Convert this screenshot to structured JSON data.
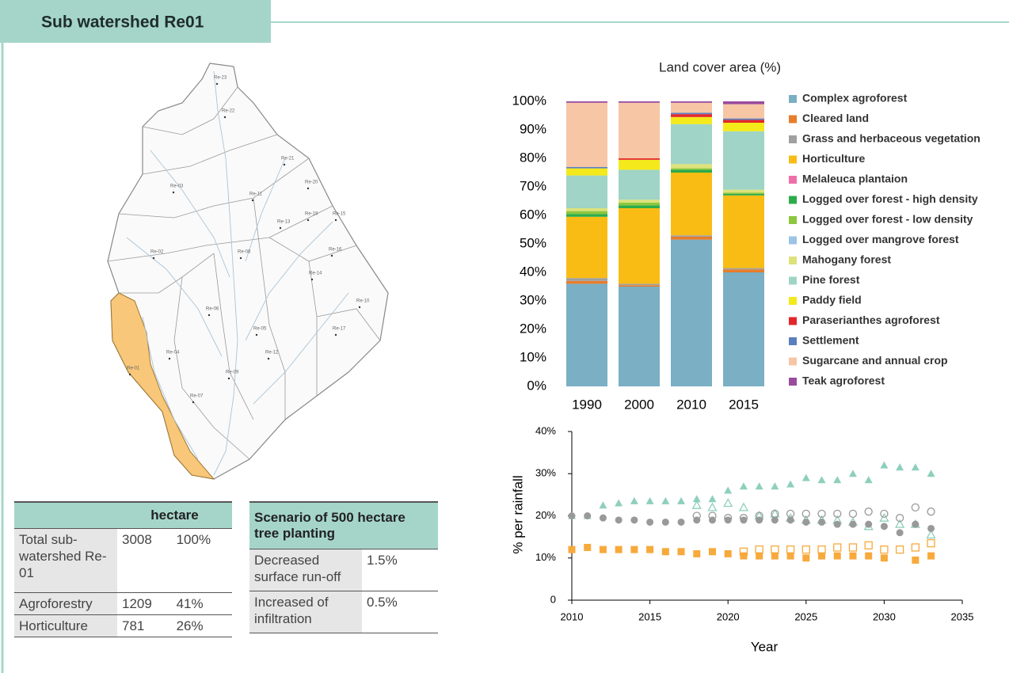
{
  "header": {
    "title": "Sub watershed Re01"
  },
  "map": {
    "labels": [
      "Re-23",
      "Re-22",
      "Re-21",
      "Re-03",
      "Re-11",
      "Re-20",
      "Re-19",
      "Re-13",
      "Re-15",
      "Re-02",
      "Re-08",
      "Re-16",
      "Re-14",
      "Re-06",
      "Re-05",
      "Re-04",
      "Re-10",
      "Re-17",
      "Re-12",
      "Re-09",
      "Re-01",
      "Re-07"
    ]
  },
  "tables": [
    {
      "header": "hectare",
      "rows": [
        [
          "Total sub-watershed Re-01",
          "3008",
          "100%"
        ],
        [
          "Agroforestry",
          "1209",
          "41%"
        ],
        [
          "Horticulture",
          "781",
          "26%"
        ]
      ]
    },
    {
      "header": "Scenario of 500 hectare tree planting",
      "rows": [
        [
          "Decreased surface run-off",
          "1.5%"
        ],
        [
          "Increased of infiltration",
          "0.5%"
        ]
      ]
    }
  ],
  "chart_data": [
    {
      "type": "stacked_bar",
      "title": "Land cover area (%)",
      "categories": [
        "1990",
        "2000",
        "2010",
        "2015"
      ],
      "ylim": [
        0,
        100
      ],
      "yticks": [
        {
          "value": 0,
          "label": "0%"
        },
        {
          "value": 10,
          "label": "10%"
        },
        {
          "value": 20,
          "label": "20%"
        },
        {
          "value": 30,
          "label": "30%"
        },
        {
          "value": 40,
          "label": "40%"
        },
        {
          "value": 50,
          "label": "50%"
        },
        {
          "value": 60,
          "label": "60%"
        },
        {
          "value": 70,
          "label": "70%"
        },
        {
          "value": 80,
          "label": "80%"
        },
        {
          "value": 90,
          "label": "90%"
        },
        {
          "value": 100,
          "label": "100%"
        }
      ],
      "grid": false,
      "legend": "right",
      "series": [
        {
          "name": "Complex agroforest",
          "color": "#7aafc4",
          "values": [
            36,
            35,
            51.5,
            40
          ]
        },
        {
          "name": "Cleared land",
          "color": "#e87d2a",
          "values": [
            1,
            0.5,
            1,
            1
          ]
        },
        {
          "name": "Grass and herbaceous vegetation",
          "color": "#a0a0a0",
          "values": [
            1,
            0.5,
            0.5,
            0.5
          ]
        },
        {
          "name": "Horticulture",
          "color": "#f9bc15",
          "values": [
            21.5,
            26.5,
            22,
            25.5
          ]
        },
        {
          "name": "Melaleuca plantaion",
          "color": "#f06fa8",
          "values": [
            0,
            0,
            0,
            0
          ]
        },
        {
          "name": "Logged over forest -  high density",
          "color": "#2bac4b",
          "values": [
            1,
            1,
            1,
            0.5
          ]
        },
        {
          "name": "Logged over forest -  low density",
          "color": "#8dc63f",
          "values": [
            1,
            1,
            0.5,
            0.5
          ]
        },
        {
          "name": "Logged over mangrove forest",
          "color": "#9dc3e6",
          "values": [
            0,
            0,
            0,
            0
          ]
        },
        {
          "name": "Mahogany forest",
          "color": "#dde27a",
          "values": [
            1,
            1,
            1.5,
            1
          ]
        },
        {
          "name": "Pine forest",
          "color": "#9fd4c6",
          "values": [
            11.5,
            10.5,
            14,
            20.5
          ]
        },
        {
          "name": "Paddy field",
          "color": "#f4e91b",
          "values": [
            2.5,
            3.5,
            2.5,
            3
          ]
        },
        {
          "name": "Paraserianthes agroforest",
          "color": "#e3262b",
          "values": [
            0,
            0.5,
            1,
            1
          ]
        },
        {
          "name": "Settlement",
          "color": "#5b7fbe",
          "values": [
            0.5,
            0,
            0.5,
            0.5
          ]
        },
        {
          "name": "Sugarcane and annual crop",
          "color": "#f7c6a5",
          "values": [
            22.5,
            19.5,
            3.5,
            5
          ]
        },
        {
          "name": "Teak agroforest",
          "color": "#9a4b9e",
          "values": [
            0.5,
            0.5,
            0.5,
            1
          ]
        }
      ]
    },
    {
      "type": "scatter",
      "x_label": "Year",
      "y_label": "% per rainfall",
      "xlim": [
        2010,
        2035
      ],
      "xticks": [
        2010,
        2015,
        2020,
        2025,
        2030,
        2035
      ],
      "ylim": [
        0,
        40
      ],
      "yticks": [
        0,
        {
          "value": 10,
          "label": "10%"
        },
        {
          "value": 20,
          "label": "20%"
        },
        {
          "value": 30,
          "label": "30%"
        },
        {
          "value": 40,
          "label": "40%"
        }
      ],
      "series": [
        {
          "color": "#8ecfbd",
          "marker": "triangle",
          "filled": true,
          "x": [
            2010,
            2011,
            2012,
            2013,
            2014,
            2015,
            2016,
            2017,
            2018,
            2019,
            2020,
            2021,
            2022,
            2023,
            2024,
            2025,
            2026,
            2027,
            2028,
            2029,
            2030,
            2031,
            2032,
            2033
          ],
          "values": [
            20,
            20,
            22.5,
            23,
            23.5,
            23.5,
            23.5,
            23.5,
            24,
            24,
            26,
            27,
            27,
            27,
            27.5,
            29,
            28.5,
            28.5,
            30,
            28.5,
            32,
            31.5,
            31.5,
            30
          ]
        },
        {
          "color": "#8ecfbd",
          "marker": "triangle",
          "filled": false,
          "x": [
            2018,
            2019,
            2020,
            2021,
            2022,
            2023,
            2024,
            2025,
            2026,
            2027,
            2028,
            2029,
            2030,
            2031,
            2032,
            2033
          ],
          "values": [
            22.5,
            22,
            23,
            22,
            20,
            20.5,
            19.5,
            19,
            19,
            19,
            18.5,
            17.5,
            19.5,
            18,
            18,
            15.5
          ]
        },
        {
          "color": "#999999",
          "marker": "circle",
          "filled": true,
          "x": [
            2010,
            2011,
            2012,
            2013,
            2014,
            2015,
            2016,
            2017,
            2018,
            2019,
            2020,
            2021,
            2022,
            2023,
            2024,
            2025,
            2026,
            2027,
            2028,
            2029,
            2030,
            2031,
            2032,
            2033
          ],
          "values": [
            20,
            20,
            19.5,
            19,
            19,
            18.5,
            18.5,
            18.5,
            19,
            19,
            19,
            19,
            19,
            19,
            19,
            18.5,
            18.5,
            18,
            18,
            18,
            17.5,
            16,
            18,
            17
          ]
        },
        {
          "color": "#999999",
          "marker": "circle",
          "filled": false,
          "x": [
            2018,
            2019,
            2020,
            2021,
            2022,
            2023,
            2024,
            2025,
            2026,
            2027,
            2028,
            2029,
            2030,
            2031,
            2032,
            2033
          ],
          "values": [
            20,
            20,
            19.5,
            19.5,
            20,
            20.5,
            20.5,
            20.5,
            20.5,
            20.5,
            20.5,
            21,
            20.5,
            19.5,
            22,
            21
          ]
        },
        {
          "color": "#f7a93b",
          "marker": "square",
          "filled": true,
          "x": [
            2010,
            2011,
            2012,
            2013,
            2014,
            2015,
            2016,
            2017,
            2018,
            2019,
            2020,
            2021,
            2022,
            2023,
            2024,
            2025,
            2026,
            2027,
            2028,
            2029,
            2030,
            2031,
            2032,
            2033
          ],
          "values": [
            12,
            12.5,
            12,
            12,
            12,
            12,
            11.5,
            11.5,
            11,
            11.5,
            11,
            10.5,
            10.5,
            10.5,
            10.5,
            10,
            10.5,
            10.5,
            10.5,
            10.5,
            10,
            null,
            9.5,
            10.5
          ]
        },
        {
          "color": "#f7a93b",
          "marker": "square",
          "filled": false,
          "x": [
            2021,
            2022,
            2023,
            2024,
            2025,
            2026,
            2027,
            2028,
            2029,
            2030,
            2031,
            2032,
            2033
          ],
          "values": [
            11.5,
            12,
            12,
            12,
            12,
            12,
            12.5,
            12.5,
            13,
            12,
            12,
            12.5,
            13.5
          ]
        }
      ]
    }
  ]
}
